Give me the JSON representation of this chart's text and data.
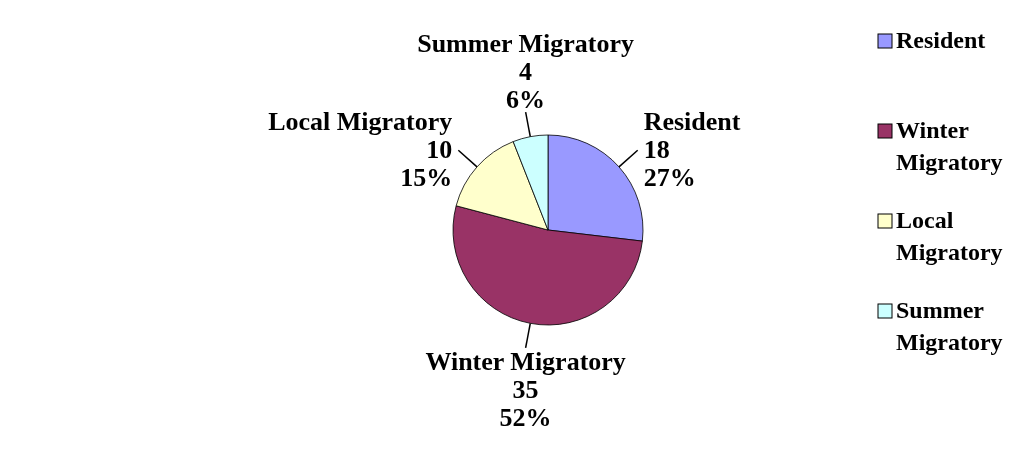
{
  "chart_data": {
    "type": "pie",
    "categories": [
      "Resident",
      "Winter Migratory",
      "Local Migratory",
      "Summer Migratory"
    ],
    "values": [
      18,
      35,
      10,
      4
    ],
    "colors": [
      "#9999ff",
      "#993366",
      "#ffffcc",
      "#ccffff"
    ],
    "value_labels": [
      "18\n27%",
      "35\n52%",
      "10\n15%",
      "4\n6%"
    ],
    "legend": "right"
  }
}
